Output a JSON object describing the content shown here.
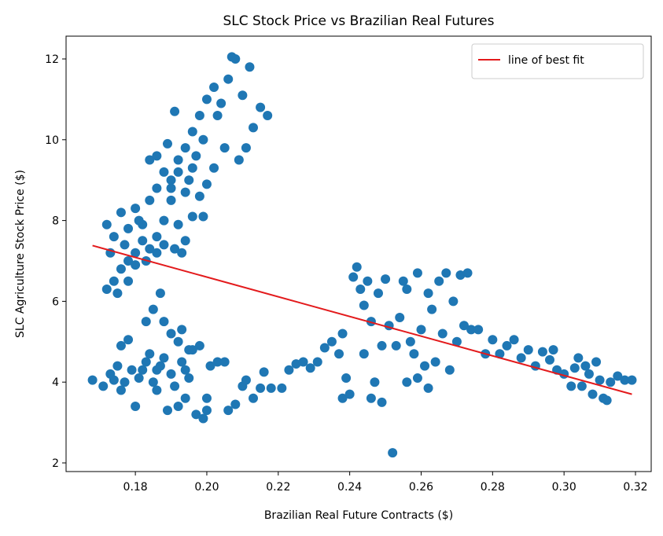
{
  "chart_data": {
    "type": "scatter",
    "title": "SLC Stock Price vs Brazilian Real Futures",
    "x_label": "Brazilian Real Future Contracts ($)",
    "y_label": "SLC Agriculture Stock Price ($)",
    "xlim": [
      0.1606,
      0.3244
    ],
    "ylim": [
      1.786,
      12.564
    ],
    "xticks": [
      0.18,
      {
        "value": 0.2,
        "label": "0.20"
      },
      0.22,
      0.24,
      0.26,
      0.28,
      {
        "value": 0.3,
        "label": "0.30"
      },
      0.32
    ],
    "yticks": [
      2,
      4,
      6,
      8,
      10,
      12
    ],
    "legend": "upper right",
    "series": [
      {
        "color": "#1f77b4",
        "x": [
          0.172,
          0.174,
          0.176,
          0.178,
          0.18,
          0.182,
          0.184,
          0.186,
          0.188,
          0.19,
          0.192,
          0.194,
          0.196,
          0.198,
          0.2,
          0.202,
          0.204,
          0.206,
          0.208,
          0.207,
          0.21,
          0.212,
          0.213,
          0.215,
          0.217,
          0.211,
          0.209,
          0.205,
          0.202,
          0.2,
          0.198,
          0.196,
          0.199,
          0.194,
          0.192,
          0.19,
          0.188,
          0.186,
          0.184,
          0.182,
          0.18,
          0.178,
          0.176,
          0.174,
          0.172,
          0.175,
          0.178,
          0.18,
          0.183,
          0.186,
          0.188,
          0.191,
          0.193,
          0.19,
          0.192,
          0.195,
          0.197,
          0.189,
          0.191,
          0.184,
          0.186,
          0.181,
          0.177,
          0.173,
          0.194,
          0.196,
          0.199,
          0.203,
          0.185,
          0.187,
          0.183,
          0.188,
          0.19,
          0.193,
          0.195,
          0.192,
          0.168,
          0.171,
          0.173,
          0.175,
          0.177,
          0.179,
          0.18,
          0.181,
          0.183,
          0.185,
          0.186,
          0.187,
          0.188,
          0.189,
          0.19,
          0.191,
          0.192,
          0.193,
          0.194,
          0.195,
          0.196,
          0.197,
          0.198,
          0.199,
          0.2,
          0.2,
          0.201,
          0.203,
          0.205,
          0.206,
          0.208,
          0.21,
          0.211,
          0.213,
          0.215,
          0.216,
          0.218,
          0.176,
          0.178,
          0.182,
          0.184,
          0.176,
          0.174,
          0.186,
          0.194,
          0.221,
          0.223,
          0.225,
          0.227,
          0.229,
          0.231,
          0.233,
          0.235,
          0.237,
          0.238,
          0.238,
          0.239,
          0.24,
          0.241,
          0.242,
          0.243,
          0.244,
          0.245,
          0.246,
          0.247,
          0.248,
          0.249,
          0.25,
          0.251,
          0.252,
          0.253,
          0.254,
          0.255,
          0.256,
          0.257,
          0.258,
          0.259,
          0.26,
          0.261,
          0.262,
          0.263,
          0.264,
          0.265,
          0.266,
          0.267,
          0.268,
          0.269,
          0.27,
          0.271,
          0.272,
          0.273,
          0.274,
          0.276,
          0.278,
          0.28,
          0.282,
          0.284,
          0.286,
          0.288,
          0.29,
          0.292,
          0.294,
          0.296,
          0.297,
          0.298,
          0.3,
          0.302,
          0.303,
          0.304,
          0.305,
          0.306,
          0.307,
          0.308,
          0.309,
          0.31,
          0.311,
          0.312,
          0.313,
          0.315,
          0.317,
          0.319,
          0.244,
          0.246,
          0.249,
          0.256,
          0.259,
          0.262
        ],
        "values": [
          7.9,
          7.6,
          8.2,
          7.8,
          8.3,
          7.9,
          8.5,
          8.8,
          9.2,
          9.0,
          9.5,
          9.8,
          10.2,
          10.6,
          11.0,
          11.3,
          10.9,
          11.5,
          12.0,
          12.05,
          11.1,
          11.8,
          10.3,
          10.8,
          10.6,
          9.8,
          9.5,
          9.8,
          9.3,
          8.9,
          8.6,
          8.1,
          8.1,
          7.5,
          7.9,
          8.5,
          8.0,
          7.6,
          7.3,
          7.5,
          7.2,
          7.0,
          6.8,
          6.5,
          6.3,
          6.2,
          6.5,
          6.9,
          7.0,
          7.2,
          7.4,
          7.3,
          7.2,
          8.8,
          9.2,
          9.0,
          9.6,
          9.9,
          10.7,
          9.5,
          9.6,
          8.0,
          7.4,
          7.2,
          8.7,
          9.3,
          10.0,
          10.6,
          5.8,
          6.2,
          5.5,
          5.5,
          5.2,
          5.3,
          4.8,
          5.0,
          4.05,
          3.9,
          4.2,
          4.4,
          4.0,
          4.3,
          3.4,
          4.1,
          4.5,
          4.0,
          3.8,
          4.4,
          4.6,
          3.3,
          4.2,
          3.9,
          3.4,
          4.5,
          3.6,
          4.1,
          4.8,
          3.2,
          4.9,
          3.1,
          3.3,
          3.6,
          4.4,
          4.5,
          4.5,
          3.3,
          3.45,
          3.9,
          4.05,
          3.6,
          3.85,
          4.25,
          3.85,
          4.9,
          5.05,
          4.3,
          4.7,
          3.8,
          4.05,
          4.3,
          4.3,
          3.85,
          4.3,
          4.45,
          4.5,
          4.35,
          4.5,
          4.85,
          5.0,
          4.7,
          5.2,
          3.6,
          4.1,
          3.7,
          6.6,
          6.85,
          6.3,
          5.9,
          6.5,
          3.6,
          4.0,
          6.2,
          3.5,
          6.55,
          5.4,
          2.25,
          4.9,
          5.6,
          6.5,
          4.0,
          5.0,
          4.7,
          6.7,
          5.3,
          4.4,
          6.2,
          5.8,
          4.5,
          6.5,
          5.2,
          6.7,
          4.3,
          6.0,
          5.0,
          6.65,
          5.4,
          6.7,
          5.3,
          5.3,
          4.7,
          5.05,
          4.7,
          4.9,
          5.05,
          4.6,
          4.8,
          4.4,
          4.75,
          4.55,
          4.8,
          4.3,
          4.2,
          3.9,
          4.35,
          4.6,
          3.9,
          4.4,
          4.2,
          3.7,
          4.5,
          4.05,
          3.6,
          3.55,
          4.0,
          4.15,
          4.05,
          4.05,
          4.7,
          5.5,
          4.9,
          6.3,
          4.1,
          3.85
        ]
      },
      {
        "name": "line of best fit",
        "type": "line",
        "color": "#e31a1c",
        "x": [
          0.168,
          0.319
        ],
        "values": [
          7.38,
          3.7
        ]
      }
    ]
  }
}
